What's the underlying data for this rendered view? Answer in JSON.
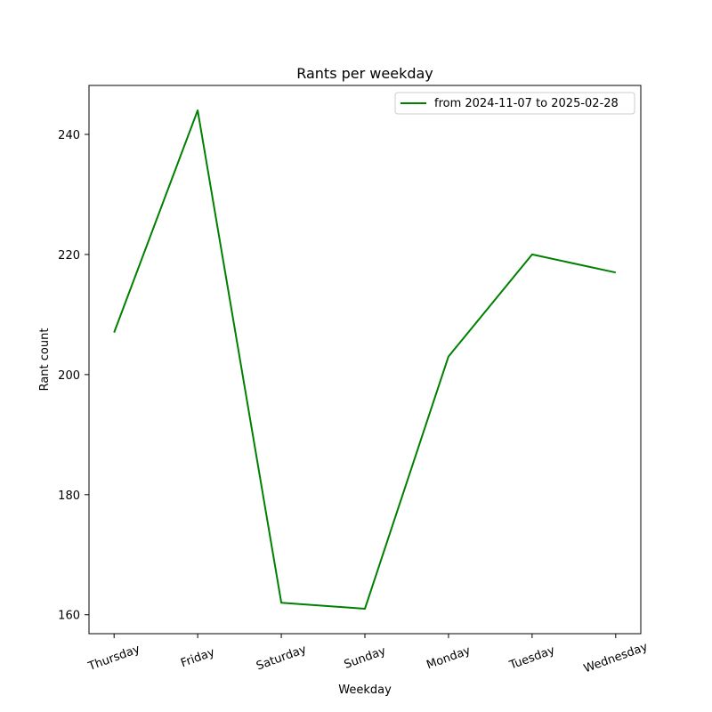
{
  "chart_data": {
    "type": "line",
    "title": "Rants per weekday",
    "xlabel": "Weekday",
    "ylabel": "Rant count",
    "categories": [
      "Thursday",
      "Friday",
      "Saturday",
      "Sunday",
      "Monday",
      "Tuesday",
      "Wednesday"
    ],
    "series": [
      {
        "name": "from 2024-11-07 to 2025-02-28",
        "color": "#008000",
        "values": [
          207,
          244,
          162,
          161,
          203,
          220,
          217
        ]
      }
    ],
    "ylim": [
      156.85,
      248.15
    ],
    "yticks": [
      160,
      180,
      200,
      220,
      240
    ],
    "grid": false,
    "legend_position": "top-right"
  }
}
